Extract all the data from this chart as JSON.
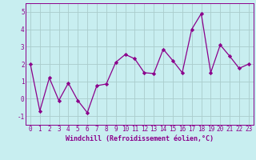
{
  "x": [
    0,
    1,
    2,
    3,
    4,
    5,
    6,
    7,
    8,
    9,
    10,
    11,
    12,
    13,
    14,
    15,
    16,
    17,
    18,
    19,
    20,
    21,
    22,
    23
  ],
  "y": [
    2.0,
    -0.7,
    1.2,
    -0.1,
    0.9,
    -0.1,
    -0.8,
    0.75,
    0.85,
    2.1,
    2.55,
    2.3,
    1.5,
    1.45,
    2.85,
    2.2,
    1.5,
    4.0,
    4.9,
    1.5,
    3.1,
    2.45,
    1.75,
    2.0
  ],
  "line_color": "#8B008B",
  "marker": "D",
  "marker_size": 2.2,
  "bg_color": "#c8eef0",
  "grid_color": "#aacccc",
  "xlabel": "Windchill (Refroidissement éolien,°C)",
  "xlim": [
    -0.5,
    23.5
  ],
  "ylim": [
    -1.5,
    5.5
  ],
  "yticks": [
    -1,
    0,
    1,
    2,
    3,
    4,
    5
  ],
  "xticks": [
    0,
    1,
    2,
    3,
    4,
    5,
    6,
    7,
    8,
    9,
    10,
    11,
    12,
    13,
    14,
    15,
    16,
    17,
    18,
    19,
    20,
    21,
    22,
    23
  ],
  "xlabel_fontsize": 6.0,
  "tick_fontsize": 5.5,
  "line_width": 0.9
}
